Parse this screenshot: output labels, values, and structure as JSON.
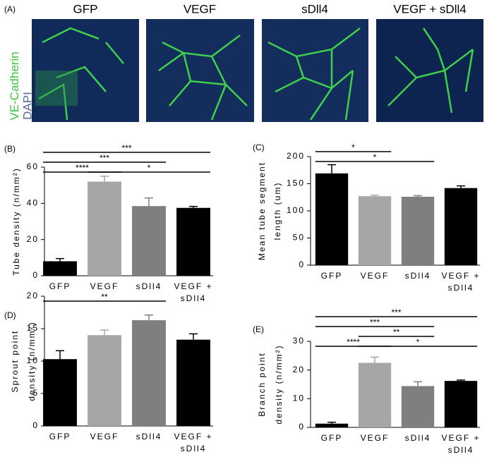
{
  "panel_a": {
    "label": "(A)",
    "columns": [
      "GFP",
      "VEGF",
      "sDll4",
      "VEGF + sDll4"
    ],
    "stain_labels": [
      "VE-Cadherin",
      "DAPI"
    ]
  },
  "chart_data": [
    {
      "type": "bar",
      "panel": "(B)",
      "y_label": [
        "Tube density (n/mm²)"
      ],
      "categories": [
        "GFP",
        "VEGF",
        "sDll4",
        [
          "VEGF +",
          "sDll4"
        ]
      ],
      "values": [
        8,
        52,
        38.5,
        37.5
      ],
      "errors": [
        1.5,
        3,
        4.5,
        0.8
      ],
      "colors": [
        "#000000",
        "#a6a6a8",
        "#7f7f7f",
        "#000000"
      ],
      "ylim": [
        0,
        60
      ],
      "yticks": [
        0,
        20,
        40,
        60
      ],
      "brackets": [
        {
          "from": 0,
          "to": 1,
          "label": "****"
        },
        {
          "from": 1,
          "to": 3,
          "label": "*"
        },
        {
          "from": 0,
          "to": 2,
          "label": "***"
        },
        {
          "from": 0,
          "to": 3,
          "label": "***"
        }
      ]
    },
    {
      "type": "bar",
      "panel": "(C)",
      "y_label": [
        "Mean tube segment",
        "length (um)"
      ],
      "categories": [
        "GFP",
        "VEGF",
        "sDll4",
        [
          "VEGF +",
          "sDll4"
        ]
      ],
      "values": [
        169,
        127,
        126,
        142
      ],
      "errors": [
        16,
        2,
        2,
        4
      ],
      "colors": [
        "#000000",
        "#a6a6a8",
        "#7f7f7f",
        "#000000"
      ],
      "ylim": [
        0,
        200
      ],
      "yticks": [
        0,
        50,
        100,
        150,
        200
      ],
      "brackets": [
        {
          "from": 0,
          "to": 2,
          "label": "*"
        },
        {
          "from": 0,
          "to": 1,
          "label": "*"
        }
      ]
    },
    {
      "type": "bar",
      "panel": "(D)",
      "y_label": [
        "Sprout point",
        "density (n/mm²)"
      ],
      "categories": [
        "GFP",
        "VEGF",
        "sDll4",
        [
          "VEGF +",
          "sDll4"
        ]
      ],
      "values": [
        10.3,
        14,
        16.3,
        13.3
      ],
      "errors": [
        1.3,
        0.8,
        0.8,
        0.9
      ],
      "colors": [
        "#000000",
        "#a6a6a8",
        "#7f7f7f",
        "#000000"
      ],
      "ylim": [
        0,
        20
      ],
      "yticks": [
        0,
        5,
        10,
        15,
        20
      ],
      "brackets": [
        {
          "from": 0,
          "to": 2,
          "label": "**"
        }
      ]
    },
    {
      "type": "bar",
      "panel": "(E)",
      "y_label": [
        "Branch point",
        "density (n/mm²)"
      ],
      "categories": [
        "GFP",
        "VEGF",
        "sDll4",
        [
          "VEGF +",
          "sDll4"
        ]
      ],
      "values": [
        1.3,
        22.5,
        14.4,
        16.2
      ],
      "errors": [
        0.5,
        2,
        1.5,
        0.3
      ],
      "colors": [
        "#000000",
        "#a6a6a8",
        "#7f7f7f",
        "#000000"
      ],
      "ylim": [
        0,
        30
      ],
      "yticks": [
        0,
        10,
        20,
        30
      ],
      "brackets": [
        {
          "from": 1,
          "to": 3,
          "label": "*"
        },
        {
          "from": 0,
          "to": 1,
          "label": "****"
        },
        {
          "from": 1,
          "to": 2,
          "label": "**"
        },
        {
          "from": 0,
          "to": 2,
          "label": "***"
        },
        {
          "from": 0,
          "to": 3,
          "label": "***"
        }
      ]
    }
  ]
}
